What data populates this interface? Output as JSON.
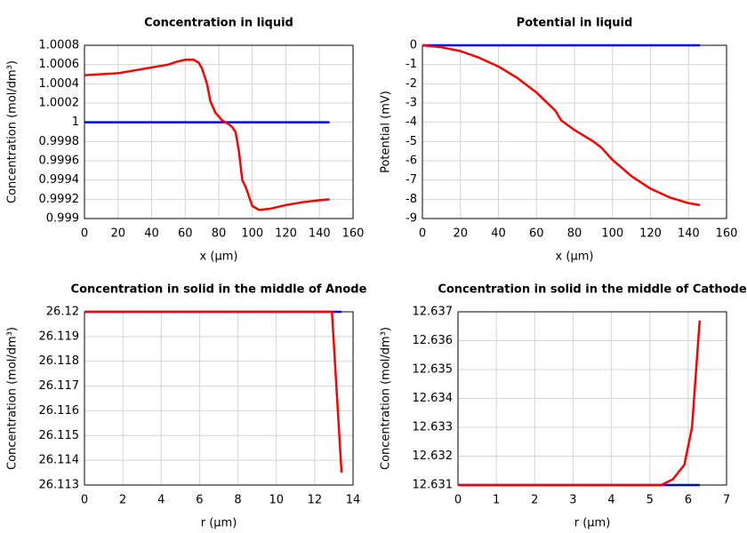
{
  "chart_data": [
    {
      "type": "line",
      "title": "Concentration in liquid",
      "xlabel": "x (µm)",
      "ylabel": "Concentration (mol/dm³)",
      "xlim": [
        0,
        160
      ],
      "xticks": [
        0,
        20,
        40,
        60,
        80,
        100,
        120,
        140,
        160
      ],
      "ylim": [
        0.999,
        1.0008
      ],
      "yticks": [
        0.999,
        0.9992,
        0.9994,
        0.9996,
        0.9998,
        1,
        1.0002,
        1.0004,
        1.0006,
        1.0008
      ],
      "grid": true,
      "series": [
        {
          "color": "#0000ff",
          "x": [
            0,
            146
          ],
          "values": [
            1,
            1
          ]
        },
        {
          "color": "#ff0000",
          "x": [
            0,
            10,
            20,
            30,
            40,
            50,
            55,
            60,
            65,
            68,
            70,
            73,
            75,
            78,
            82,
            86,
            88,
            90,
            92,
            94,
            96,
            100,
            104,
            110,
            120,
            130,
            140,
            146
          ],
          "values": [
            1.00049,
            1.0005,
            1.00051,
            1.00054,
            1.00057,
            1.0006,
            1.00063,
            1.00065,
            1.00065,
            1.00062,
            1.00056,
            1.0004,
            1.00022,
            1.0001,
            1.00002,
            0.99998,
            0.99995,
            0.9999,
            0.9997,
            0.9994,
            0.99933,
            0.99913,
            0.99909,
            0.9991,
            0.99914,
            0.99917,
            0.99919,
            0.9992
          ]
        }
      ]
    },
    {
      "type": "line",
      "title": "Potential in liquid",
      "xlabel": "x (µm)",
      "ylabel": "Potential (mV)",
      "xlim": [
        0,
        160
      ],
      "xticks": [
        0,
        20,
        40,
        60,
        80,
        100,
        120,
        140,
        160
      ],
      "ylim": [
        -9,
        0
      ],
      "yticks": [
        -9,
        -8,
        -7,
        -6,
        -5,
        -4,
        -3,
        -2,
        -1,
        0
      ],
      "grid": true,
      "series": [
        {
          "color": "#0000ff",
          "x": [
            0,
            146
          ],
          "values": [
            0,
            0
          ]
        },
        {
          "color": "#ff0000",
          "x": [
            0,
            10,
            20,
            30,
            40,
            50,
            60,
            70,
            73,
            80,
            90,
            94,
            100,
            110,
            120,
            130,
            140,
            146
          ],
          "values": [
            0,
            -0.1,
            -0.3,
            -0.65,
            -1.1,
            -1.7,
            -2.45,
            -3.4,
            -3.9,
            -4.4,
            -5.0,
            -5.3,
            -5.95,
            -6.8,
            -7.45,
            -7.9,
            -8.2,
            -8.3
          ]
        }
      ]
    },
    {
      "type": "line",
      "title": "Concentration in solid in the middle of Anode",
      "xlabel": "r (µm)",
      "ylabel": "Concentration (mol/dm³)",
      "xlim": [
        0,
        14
      ],
      "xticks": [
        0,
        2,
        4,
        6,
        8,
        10,
        12,
        14
      ],
      "ylim": [
        26.113,
        26.12
      ],
      "yticks": [
        26.113,
        26.114,
        26.115,
        26.116,
        26.117,
        26.118,
        26.119,
        26.12
      ],
      "grid": true,
      "series": [
        {
          "color": "#0000ff",
          "x": [
            0,
            13.4
          ],
          "values": [
            26.12,
            26.12
          ]
        },
        {
          "color": "#ff0000",
          "x": [
            0,
            4,
            8,
            12,
            12.9,
            13.4
          ],
          "values": [
            26.12,
            26.12,
            26.12,
            26.12,
            26.12,
            26.1135
          ]
        }
      ]
    },
    {
      "type": "line",
      "title": "Concentration in solid in the middle of Cathode",
      "xlabel": "r (µm)",
      "ylabel": "Concentration (mol/dm³)",
      "xlim": [
        0,
        7
      ],
      "xticks": [
        0,
        1,
        2,
        3,
        4,
        5,
        6,
        7
      ],
      "ylim": [
        12.631,
        12.637
      ],
      "yticks": [
        12.631,
        12.632,
        12.633,
        12.634,
        12.635,
        12.636,
        12.637
      ],
      "grid": true,
      "series": [
        {
          "color": "#0000ff",
          "x": [
            0,
            6.3
          ],
          "values": [
            12.631,
            12.631
          ]
        },
        {
          "color": "#ff0000",
          "x": [
            0,
            3,
            5,
            5.3,
            5.6,
            5.9,
            6.1,
            6.3
          ],
          "values": [
            12.631,
            12.631,
            12.631,
            12.631,
            12.6312,
            12.6317,
            12.633,
            12.6367
          ]
        }
      ]
    }
  ]
}
